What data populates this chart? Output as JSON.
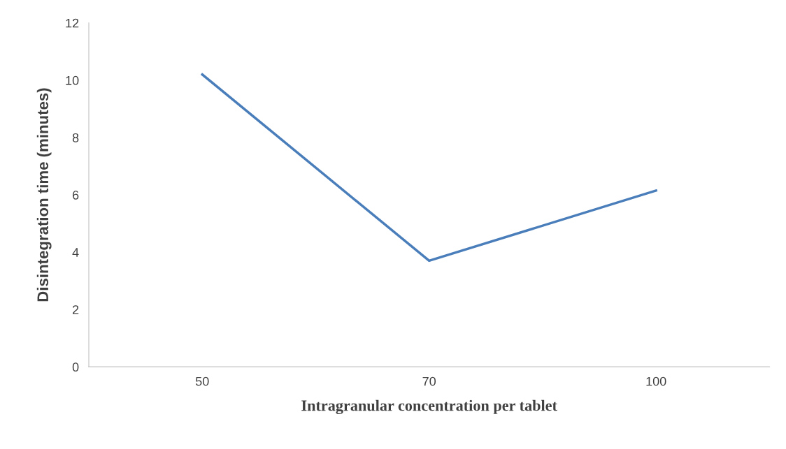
{
  "chart_data": {
    "type": "line",
    "xlabel": "Intragranular concentration per tablet",
    "ylabel": "Disintegration time (minutes)",
    "categories": [
      "50",
      "70",
      "100"
    ],
    "series": [
      {
        "color": "#4a7ebb",
        "values": [
          10.2,
          3.7,
          6.15
        ]
      }
    ],
    "ylim": [
      0,
      12
    ],
    "yticks": [
      0,
      2,
      4,
      6,
      8,
      10,
      12
    ],
    "grid": false,
    "legend": false,
    "marker": "none",
    "line_style": "solid"
  }
}
